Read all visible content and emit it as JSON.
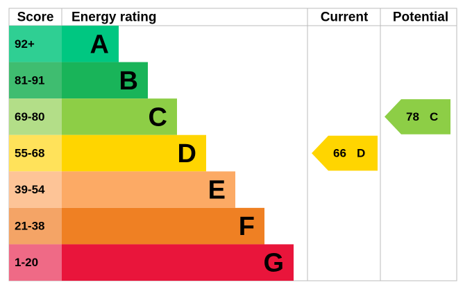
{
  "header": {
    "score": "Score",
    "rating": "Energy rating",
    "current": "Current",
    "potential": "Potential"
  },
  "bands": [
    {
      "score": "92+",
      "letter": "A",
      "color": "#00c781",
      "score_color": "#2fcf93"
    },
    {
      "score": "81-91",
      "letter": "B",
      "color": "#19b459",
      "score_color": "#3fbd70"
    },
    {
      "score": "69-80",
      "letter": "C",
      "color": "#8dce46",
      "score_color": "#b3de88"
    },
    {
      "score": "55-68",
      "letter": "D",
      "color": "#ffd500",
      "score_color": "#ffe25a"
    },
    {
      "score": "39-54",
      "letter": "E",
      "color": "#fcaa65",
      "score_color": "#fdc497"
    },
    {
      "score": "21-38",
      "letter": "F",
      "color": "#ef8023",
      "score_color": "#f4a466"
    },
    {
      "score": "1-20",
      "letter": "G",
      "color": "#e9153b",
      "score_color": "#ef6a86"
    }
  ],
  "current": {
    "value": 66,
    "letter": "D"
  },
  "potential": {
    "value": 78,
    "letter": "C"
  }
}
